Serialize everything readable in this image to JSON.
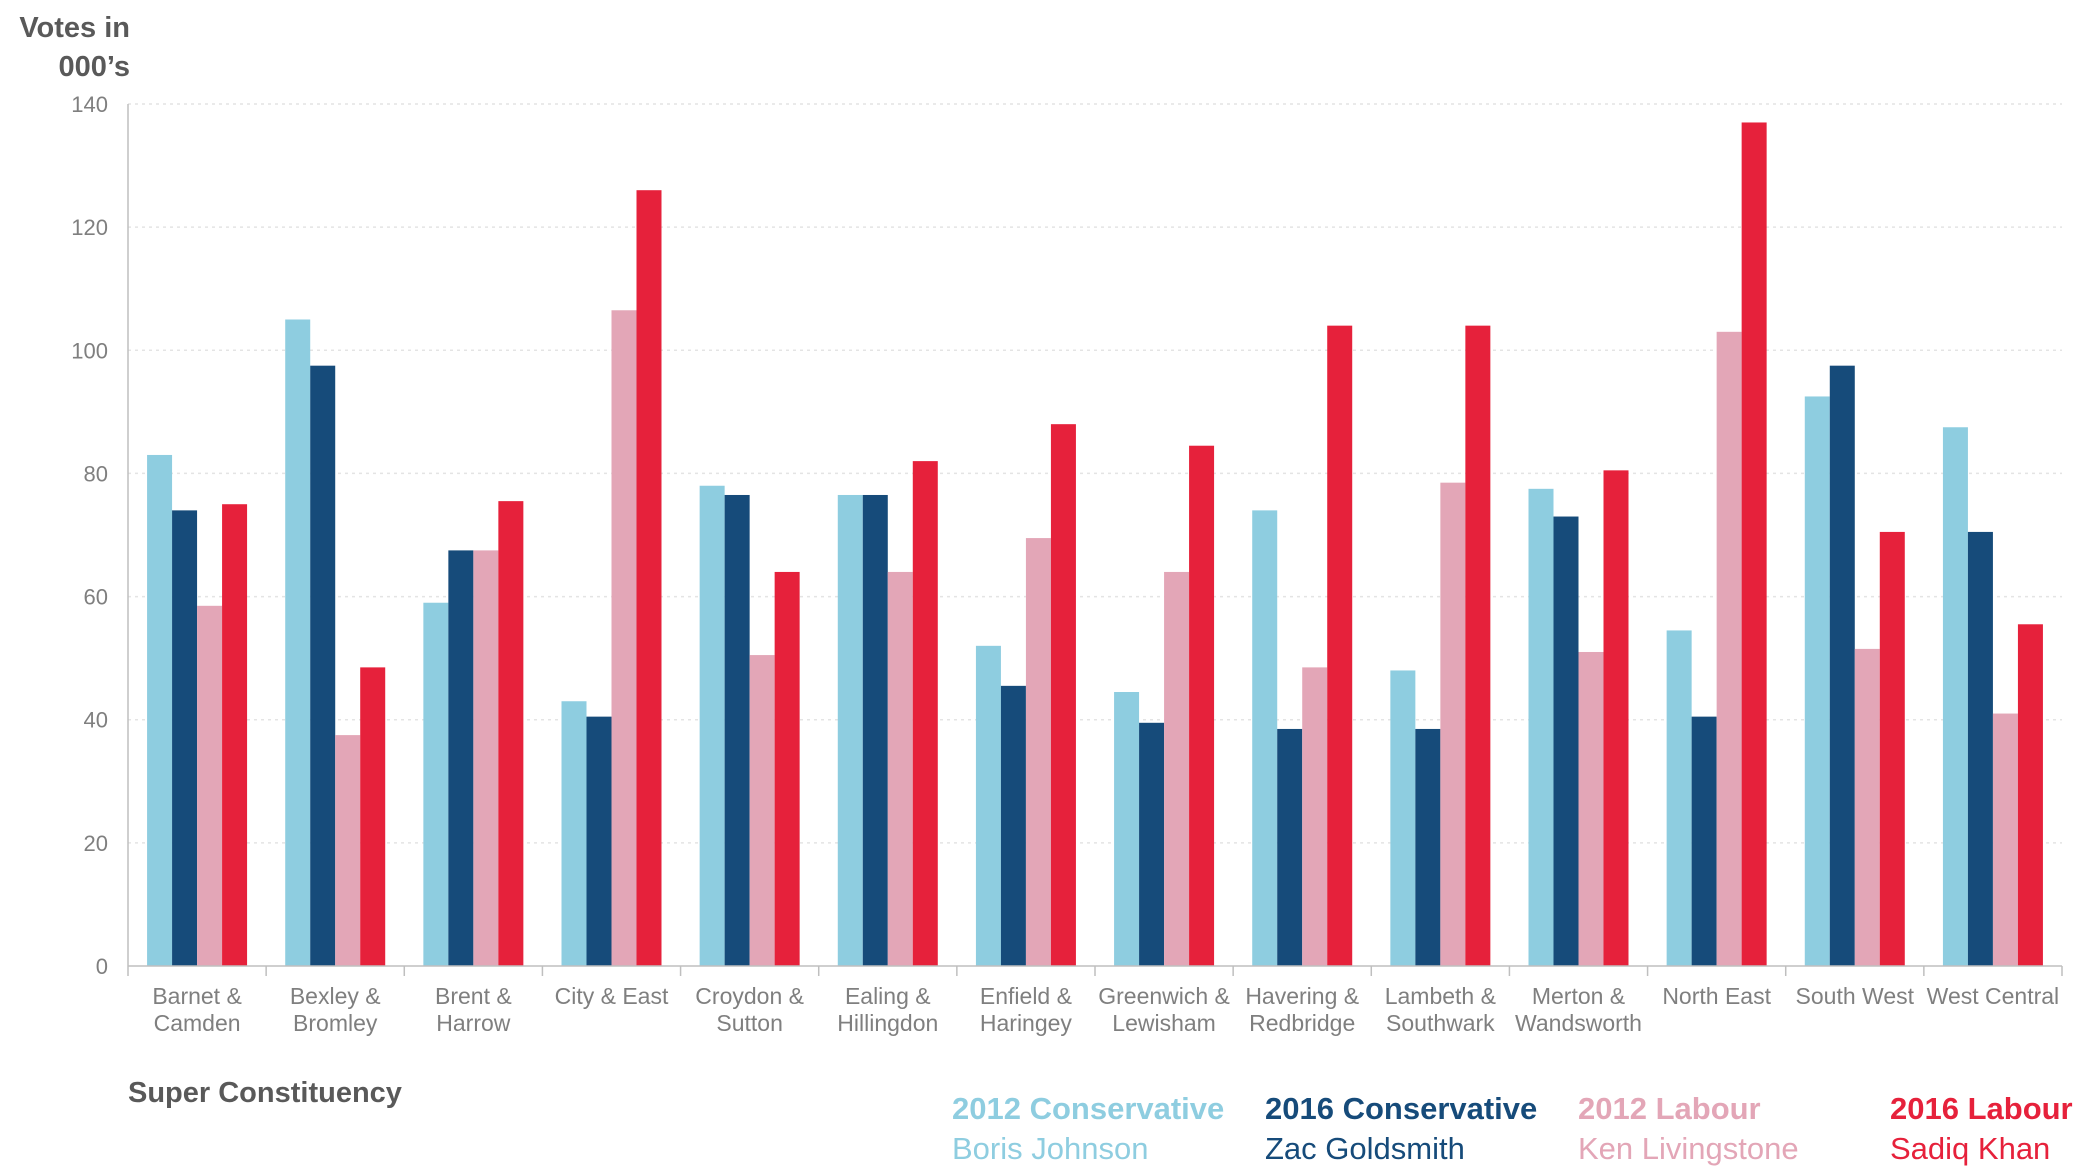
{
  "chart_data": {
    "type": "bar",
    "ylabel_lines": [
      "Votes in",
      "000’s"
    ],
    "xlabel": "Super Constituency",
    "ylim": [
      0,
      140
    ],
    "yticks": [
      0,
      20,
      40,
      60,
      80,
      100,
      120,
      140
    ],
    "grid": true,
    "legend_position": "bottom-right",
    "categories": [
      [
        "Barnet &",
        "Camden"
      ],
      [
        "Bexley &",
        "Bromley"
      ],
      [
        "Brent &",
        "Harrow"
      ],
      [
        "City & East"
      ],
      [
        "Croydon &",
        "Sutton"
      ],
      [
        "Ealing &",
        "Hillingdon"
      ],
      [
        "Enfield &",
        "Haringey"
      ],
      [
        "Greenwich &",
        "Lewisham"
      ],
      [
        "Havering &",
        "Redbridge"
      ],
      [
        "Lambeth &",
        "Southwark"
      ],
      [
        "Merton &",
        "Wandsworth"
      ],
      [
        "North East"
      ],
      [
        "South West"
      ],
      [
        "West Central"
      ]
    ],
    "series": [
      {
        "name": "2012 Conservative",
        "candidate": "Boris Johnson",
        "color": "#8ecde0",
        "values": [
          83,
          105,
          59,
          43,
          78,
          76.5,
          52,
          44.5,
          74,
          48,
          77.5,
          54.5,
          92.5,
          87.5
        ]
      },
      {
        "name": "2016 Conservative",
        "candidate": "Zac Goldsmith",
        "color": "#164b7a",
        "values": [
          74,
          97.5,
          67.5,
          40.5,
          76.5,
          76.5,
          45.5,
          39.5,
          38.5,
          38.5,
          73,
          40.5,
          97.5,
          70.5
        ]
      },
      {
        "name": "2012 Labour",
        "candidate": "Ken Livingstone",
        "color": "#e3a6b7",
        "values": [
          58.5,
          37.5,
          67.5,
          106.5,
          50.5,
          64,
          69.5,
          64,
          48.5,
          78.5,
          51,
          103,
          51.5,
          41
        ]
      },
      {
        "name": "2016 Labour",
        "candidate": "Sadiq Khan",
        "color": "#e6213b",
        "values": [
          75,
          48.5,
          75.5,
          126,
          64,
          82,
          88,
          84.5,
          104,
          104,
          80.5,
          137,
          70.5,
          55.5
        ]
      }
    ]
  }
}
